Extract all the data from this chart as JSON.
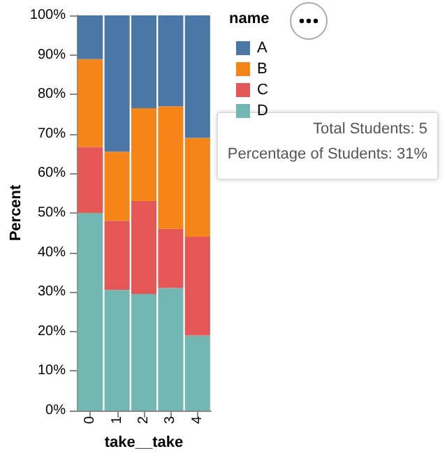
{
  "chart_data": {
    "type": "bar",
    "stacked": true,
    "xlabel": "take__take",
    "ylabel": "Percent",
    "legend_title": "name",
    "categories": [
      "0",
      "1",
      "2",
      "3",
      "4"
    ],
    "series": [
      {
        "name": "D",
        "color": "#72b7b2",
        "values": [
          50,
          30.5,
          29.5,
          31,
          19
        ]
      },
      {
        "name": "C",
        "color": "#e45756",
        "values": [
          16.7,
          17.5,
          23.5,
          15,
          25
        ]
      },
      {
        "name": "B",
        "color": "#f58518",
        "values": [
          22.2,
          17.5,
          23.5,
          31,
          25
        ]
      },
      {
        "name": "A",
        "color": "#4c78a8",
        "values": [
          11.1,
          34.5,
          23.5,
          23,
          31
        ]
      }
    ],
    "ylim": [
      0,
      100
    ],
    "yticks": [
      {
        "value": 0,
        "label": "0%"
      },
      {
        "value": 10,
        "label": "10%"
      },
      {
        "value": 20,
        "label": "20%"
      },
      {
        "value": 30,
        "label": "30%"
      },
      {
        "value": 40,
        "label": "40%"
      },
      {
        "value": 50,
        "label": "50%"
      },
      {
        "value": 60,
        "label": "60%"
      },
      {
        "value": 70,
        "label": "70%"
      },
      {
        "value": 80,
        "label": "80%"
      },
      {
        "value": 90,
        "label": "90%"
      },
      {
        "value": 100,
        "label": "100%"
      }
    ],
    "grid": false,
    "legend": "top right",
    "annotations": [
      "Total Students: 5",
      "Percentage of Students: 31%"
    ]
  }
}
